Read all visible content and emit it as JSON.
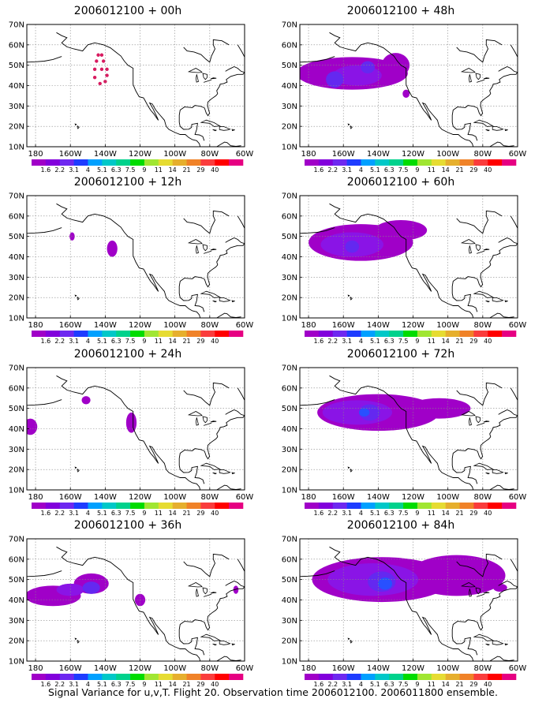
{
  "caption": "Signal Variance for u,v,T. Flight 20. Observation time 2006012100. 2006011800 ensemble.",
  "lat_labels": [
    "70N",
    "60N",
    "50N",
    "40N",
    "30N",
    "20N",
    "10N"
  ],
  "lon_labels": [
    "180",
    "160W",
    "140W",
    "120W",
    "100W",
    "80W",
    "60W"
  ],
  "legend": {
    "labels": [
      "1.6",
      "2.2",
      "3.1",
      "4",
      "5.1",
      "6.3",
      "7.5",
      "9",
      "11",
      "14",
      "21",
      "29",
      "40"
    ],
    "colors": [
      "#a000c8",
      "#8200dc",
      "#6e28f0",
      "#1e3cff",
      "#00a0ff",
      "#00c8c8",
      "#00d28c",
      "#00dc00",
      "#a0e632",
      "#e6dc32",
      "#e6af2d",
      "#f08228",
      "#fa3c3c",
      "#ff0000",
      "#e60082"
    ]
  },
  "panels": [
    {
      "title": "2006012100 + 00h"
    },
    {
      "title": "2006012100 + 48h"
    },
    {
      "title": "2006012100 + 12h"
    },
    {
      "title": "2006012100 + 60h"
    },
    {
      "title": "2006012100 + 24h"
    },
    {
      "title": "2006012100 + 72h"
    },
    {
      "title": "2006012100 + 36h"
    },
    {
      "title": "2006012100 + 84h"
    }
  ]
}
